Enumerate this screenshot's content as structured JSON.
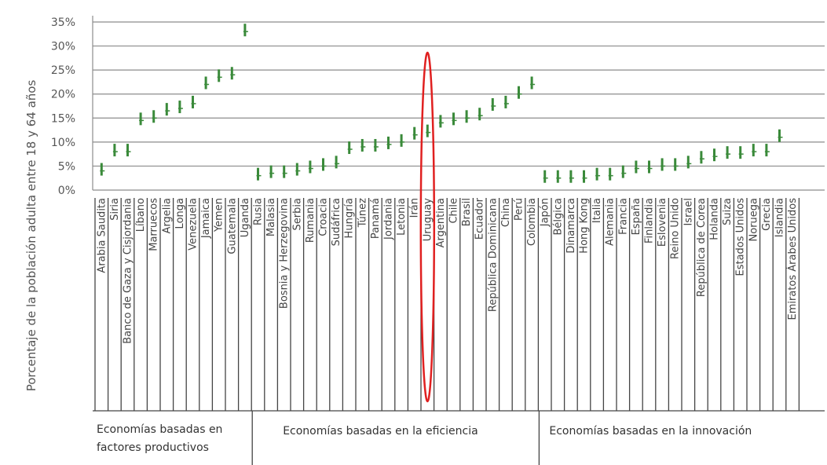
{
  "chart_data": {
    "type": "bar",
    "title": "",
    "ylabel": "Porcentaje de la población adulta entre 18 y 64 años",
    "xlabel": "",
    "ylim": [
      0,
      35
    ],
    "yticks": [
      0,
      5,
      10,
      15,
      20,
      25,
      30,
      35
    ],
    "ytick_labels": [
      "0%",
      "5%",
      "10%",
      "15%",
      "20%",
      "25%",
      "30%",
      "35%"
    ],
    "grid": true,
    "mark_color": "#3a8a3a",
    "highlight_color": "#e02020",
    "highlighted_category": "Uruguay",
    "groups": [
      {
        "label_lines": [
          "Economías basadas en",
          "factores productivos"
        ],
        "categories": [
          "Arabia Saudita",
          "Siria",
          "Banco de Gaza y Cisjordania",
          "Líbano",
          "Marruecos",
          "Argelia",
          "Longa",
          "Venezuela",
          "Jamaica",
          "Yemen",
          "Guatemala",
          "Uganda"
        ],
        "values": [
          4,
          8,
          8,
          14.5,
          15,
          16.5,
          17,
          18,
          22,
          23.5,
          24,
          33
        ]
      },
      {
        "label_lines": [
          "Economías basadas en la eficiencia"
        ],
        "categories": [
          "Rusia",
          "Malasia",
          "Bosnia y Herzegovina",
          "Serbia",
          "Rumania",
          "Croacia",
          "Sudáfrica",
          "Hungría",
          "Túnez",
          "Panamá",
          "Jordania",
          "Letonia",
          "Irán",
          "Uruguay",
          "Argentina",
          "Chile",
          "Brasil",
          "Ecuador",
          "República Dominicana",
          "China",
          "Perú",
          "Colombia"
        ],
        "values": [
          3,
          3.5,
          3.5,
          4,
          4.5,
          5,
          5.5,
          8.5,
          9,
          9,
          9.5,
          10,
          11.5,
          12,
          14,
          14.5,
          15,
          15.5,
          17.5,
          18,
          20,
          22
        ]
      },
      {
        "label_lines": [
          "Economías basadas en la innovación"
        ],
        "categories": [
          "Japón",
          "Bélgica",
          "Dinamarca",
          "Hong Kong",
          "Italia",
          "Alemania",
          "Francia",
          "España",
          "Finlandia",
          "Eslovenia",
          "Reino Unido",
          "Israel",
          "República de Corea",
          "Holanda",
          "Suiza",
          "Estados Unidos",
          "Noruega",
          "Grecia",
          "Islandia",
          "Emiratos Árabes Unidos"
        ],
        "values": [
          2.5,
          2.5,
          2.5,
          2.5,
          3,
          3,
          3.5,
          4.5,
          4.5,
          5,
          5,
          5.5,
          6.5,
          7,
          7.5,
          7.5,
          8,
          8,
          11,
          null
        ]
      }
    ]
  }
}
